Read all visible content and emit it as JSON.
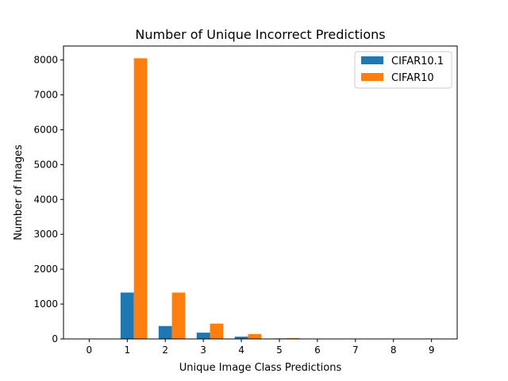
{
  "chart_data": {
    "type": "bar",
    "title": "Number of Unique Incorrect Predictions",
    "xlabel": "Unique Image Class Predictions",
    "ylabel": "Number of Images",
    "categories": [
      "0",
      "1",
      "2",
      "3",
      "4",
      "5",
      "6",
      "7",
      "8",
      "9"
    ],
    "series": [
      {
        "name": "CIFAR10.1",
        "color": "#1f77b4",
        "values": [
          0,
          1330,
          370,
          180,
          65,
          15,
          2,
          0,
          0,
          0
        ]
      },
      {
        "name": "CIFAR10",
        "color": "#ff7f0e",
        "values": [
          0,
          8050,
          1330,
          440,
          140,
          25,
          5,
          1,
          0,
          0
        ]
      }
    ],
    "ylim": [
      0,
      8400
    ],
    "yticks": [
      "0",
      "1000",
      "2000",
      "3000",
      "4000",
      "5000",
      "6000",
      "7000",
      "8000"
    ],
    "grid": false,
    "legend_position": "top-right"
  }
}
